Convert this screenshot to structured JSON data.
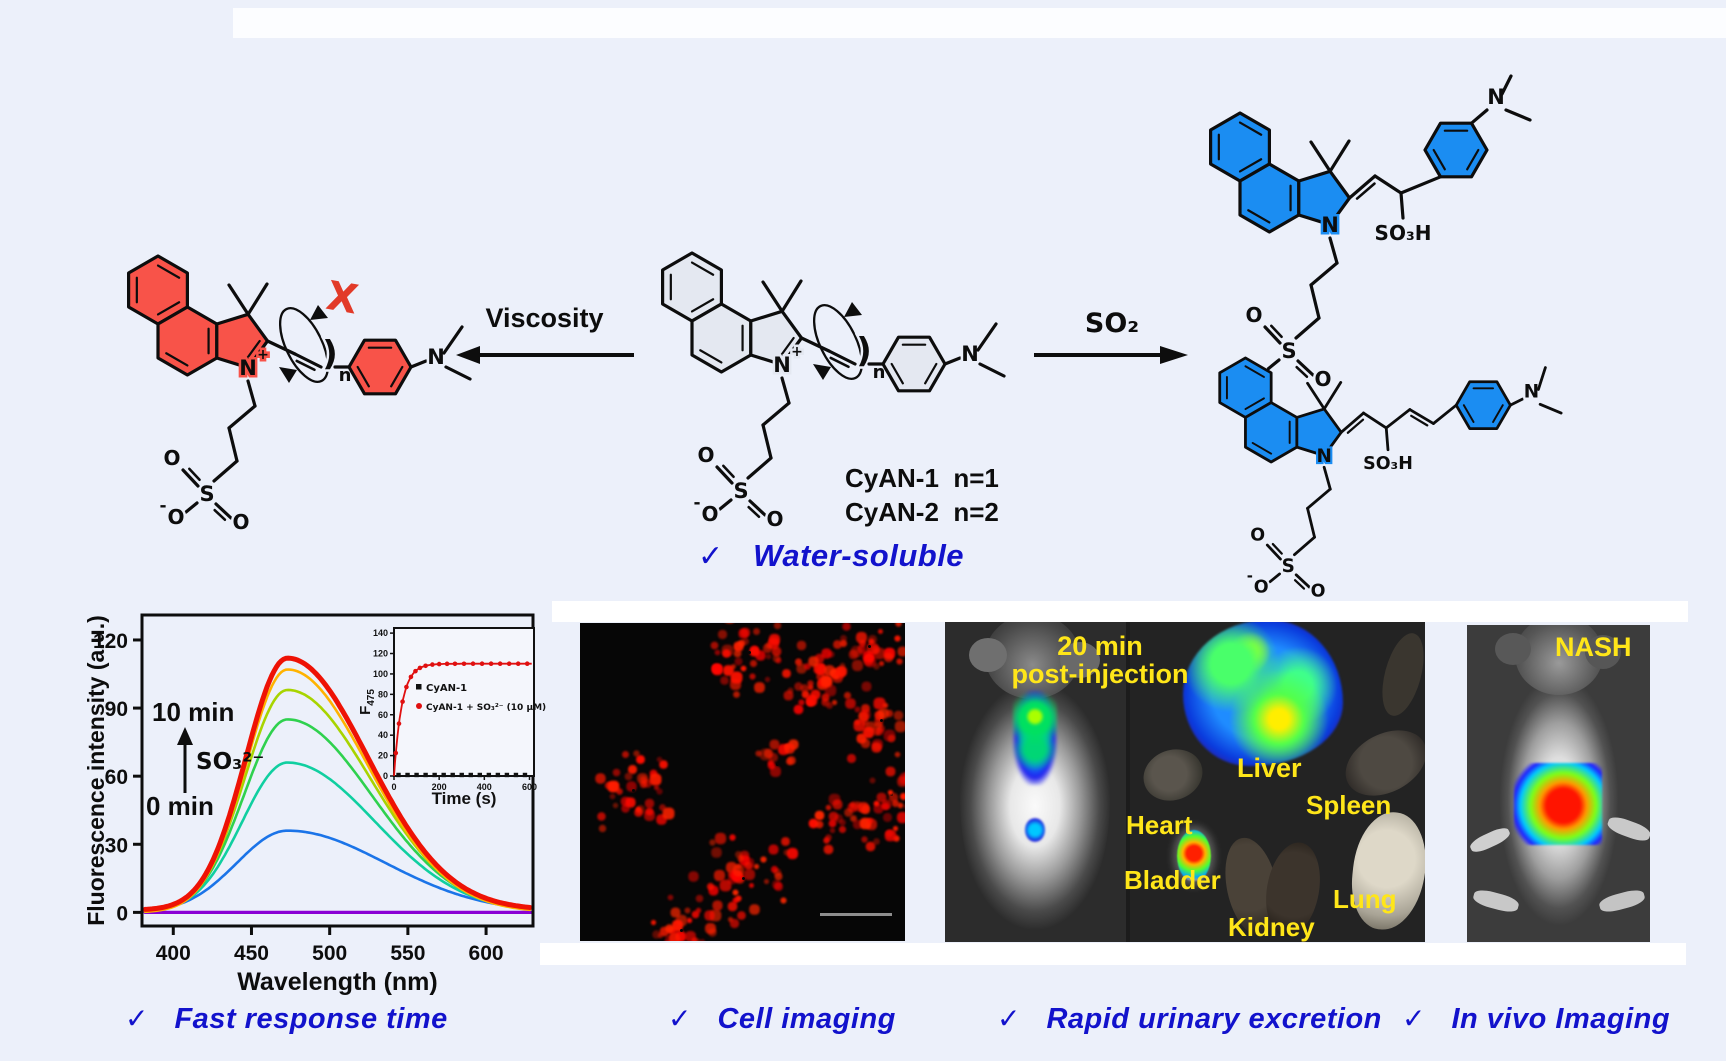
{
  "colors": {
    "background": "#ecf0fa",
    "accent_blue": "#1212cc",
    "label_yellow": "#ffe619",
    "scheme_red_fill": "#f85349",
    "scheme_blue_fill": "#1b8df2",
    "cross_red": "#e23a28",
    "spectrum_top": "#ee1205"
  },
  "scheme": {
    "viscosity_label": "Viscosity",
    "so2_label": "SO₂",
    "cross_mark": "X",
    "bracket": ")",
    "repeat_sub": "n",
    "compound_line1": "CyAN-1  n=1",
    "compound_line2": "CyAN-2  n=2",
    "atoms": {
      "n": "N",
      "plus": "+",
      "minus": "-",
      "o": "O",
      "s": "S",
      "so3h": "SO₃H"
    }
  },
  "checks": {
    "water": {
      "mark": "✓",
      "label": "Water-soluble"
    },
    "fast": {
      "mark": "✓",
      "label": "Fast response time"
    },
    "cell": {
      "mark": "✓",
      "label": "Cell imaging"
    },
    "urinary": {
      "mark": "✓",
      "label": "Rapid urinary excretion"
    },
    "invivo": {
      "mark": "✓",
      "label": "In vivo Imaging"
    }
  },
  "panels": {
    "invivo_title_line1": "20 min",
    "invivo_title_line2": "post-injection",
    "organ_labels": {
      "liver": "Liver",
      "heart": "Heart",
      "bladder": "Bladder",
      "kidney": "Kidney",
      "spleen": "Spleen",
      "lung": "Lung"
    },
    "nash_label": "NASH"
  },
  "chart_data": [
    {
      "type": "line",
      "xlabel": "Wavelength (nm)",
      "ylabel": "Fluorescence intensity (a.u.)",
      "xlim": [
        380,
        630
      ],
      "ylim": [
        -6,
        131
      ],
      "xticks": [
        400,
        450,
        500,
        550,
        600
      ],
      "yticks": [
        0,
        30,
        60,
        90,
        120
      ],
      "peak_nm": 473,
      "annotations": {
        "top": "10 min",
        "bottom": "0 min",
        "analyte": "SO₃²⁻"
      },
      "series": [
        {
          "peak": 111,
          "fwhm_nm": 78,
          "color": "#ee1205",
          "width": 5,
          "baseline": 1
        },
        {
          "peak": 107,
          "fwhm_nm": 78,
          "color": "#ffb300",
          "width": 2.6,
          "baseline": 0
        },
        {
          "peak": 98,
          "fwhm_nm": 80,
          "color": "#a8d400",
          "width": 2.6,
          "baseline": 0
        },
        {
          "peak": 85,
          "fwhm_nm": 82,
          "color": "#2fd14e",
          "width": 2.6,
          "baseline": 0
        },
        {
          "peak": 66,
          "fwhm_nm": 85,
          "color": "#10cfa0",
          "width": 2.6,
          "baseline": 0
        },
        {
          "peak": 36,
          "fwhm_nm": 95,
          "color": "#1b74e8",
          "width": 2.6,
          "baseline": 0
        },
        {
          "peak": 0,
          "fwhm_nm": 0,
          "color": "#8a00d4",
          "width": 3.2,
          "baseline": 0
        }
      ]
    },
    {
      "type": "scatter",
      "xlabel": "Time (s)",
      "ylabel": "F",
      "ylabel_sub": "475",
      "xlim": [
        0,
        620
      ],
      "ylim": [
        0,
        145
      ],
      "xticks": [
        0,
        200,
        400,
        600
      ],
      "yticks": [
        0,
        20,
        40,
        60,
        80,
        100,
        120,
        140
      ],
      "series": [
        {
          "name": "CyAN-1",
          "color": "#111111",
          "marker": "square",
          "plateau": 1,
          "tau_s": 0
        },
        {
          "name": "CyAN-1 + SO₃²⁻ (10 μM)",
          "color": "#e01010",
          "marker": "circle",
          "plateau": 110,
          "tau_s": 35
        }
      ]
    }
  ]
}
